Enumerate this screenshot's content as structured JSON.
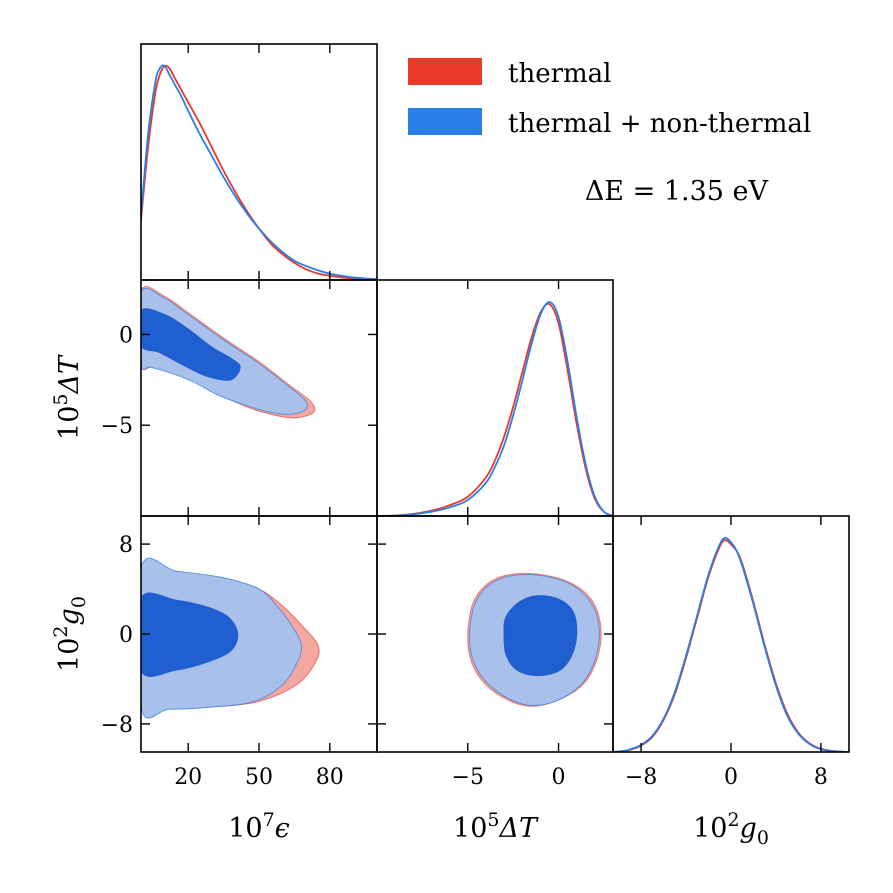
{
  "chart_data": {
    "type": "corner",
    "title": "",
    "annotation": "ΔE = 1.35 eV",
    "colors": {
      "thermal": "#e8392a",
      "nonthermal": "#2a7ee8",
      "inner": "#1f5fd0",
      "outer": "#a9c1ea",
      "outer_red": "#f2a8a0"
    },
    "legend": {
      "position": "top-right",
      "entries": [
        {
          "name": "thermal",
          "label": "thermal",
          "color": "#e8392a"
        },
        {
          "name": "thermal-nonthermal",
          "label": "thermal + non-thermal",
          "color": "#2a7ee8"
        }
      ]
    },
    "parameters": [
      {
        "name": "epsilon",
        "base": "10",
        "exp": "7",
        "symbol": "ϵ",
        "sub": "",
        "range": [
          0,
          100
        ],
        "ticks": [
          20,
          50,
          80
        ],
        "tick_labels": [
          "20",
          "50",
          "80"
        ]
      },
      {
        "name": "deltaT",
        "base": "10",
        "exp": "5",
        "symbol": "ΔT",
        "sub": "",
        "range": [
          -10,
          3
        ],
        "ticks": [
          -5,
          0
        ],
        "tick_labels": [
          "−5",
          "0"
        ]
      },
      {
        "name": "g0",
        "base": "10",
        "exp": "2",
        "symbol": "g",
        "sub": "0",
        "range": [
          -10.5,
          10.5
        ],
        "ticks": [
          -8,
          0,
          8
        ],
        "tick_labels": [
          "−8",
          "0",
          "8"
        ]
      }
    ],
    "marginals": {
      "epsilon": {
        "x": [
          0,
          3,
          6,
          8,
          10,
          12,
          14,
          17,
          20,
          25,
          30,
          35,
          40,
          45,
          50,
          55,
          60,
          65,
          70,
          75,
          80,
          85,
          90,
          95,
          100
        ],
        "thermal": [
          0.28,
          0.62,
          0.87,
          0.96,
          1.0,
          0.99,
          0.95,
          0.89,
          0.83,
          0.73,
          0.62,
          0.51,
          0.41,
          0.32,
          0.24,
          0.17,
          0.12,
          0.08,
          0.05,
          0.03,
          0.02,
          0.012,
          0.007,
          0.004,
          0.002
        ],
        "nonthermal": [
          0.3,
          0.68,
          0.92,
          0.99,
          1.0,
          0.96,
          0.92,
          0.86,
          0.79,
          0.68,
          0.58,
          0.48,
          0.39,
          0.31,
          0.24,
          0.18,
          0.13,
          0.09,
          0.065,
          0.045,
          0.03,
          0.02,
          0.012,
          0.007,
          0.004
        ]
      },
      "deltaT": {
        "x": [
          -10,
          -9,
          -8,
          -7,
          -6,
          -5,
          -4,
          -3.5,
          -3,
          -2.5,
          -2,
          -1.5,
          -1,
          -0.5,
          0,
          0.5,
          1,
          1.5,
          2,
          2.5,
          3
        ],
        "thermal": [
          0.0,
          0.002,
          0.01,
          0.025,
          0.05,
          0.09,
          0.18,
          0.26,
          0.37,
          0.51,
          0.67,
          0.83,
          0.95,
          0.99,
          0.9,
          0.68,
          0.43,
          0.22,
          0.08,
          0.02,
          0.0
        ],
        "nonthermal": [
          0.0,
          0.001,
          0.008,
          0.02,
          0.04,
          0.075,
          0.155,
          0.23,
          0.33,
          0.47,
          0.63,
          0.8,
          0.94,
          1.0,
          0.93,
          0.72,
          0.46,
          0.24,
          0.09,
          0.02,
          0.0
        ]
      },
      "g0": {
        "x": [
          -10.5,
          -10,
          -9,
          -8,
          -7,
          -6,
          -5,
          -4,
          -3,
          -2,
          -1,
          -0.5,
          0,
          0.5,
          1,
          2,
          3,
          4,
          5,
          6,
          7,
          8,
          9,
          10,
          10.5
        ],
        "thermal": [
          0.0,
          0.002,
          0.01,
          0.03,
          0.07,
          0.15,
          0.27,
          0.44,
          0.63,
          0.82,
          0.96,
          0.99,
          0.97,
          0.94,
          0.88,
          0.7,
          0.5,
          0.32,
          0.18,
          0.09,
          0.04,
          0.015,
          0.005,
          0.001,
          0.0
        ],
        "nonthermal": [
          0.0,
          0.002,
          0.012,
          0.034,
          0.075,
          0.155,
          0.28,
          0.45,
          0.64,
          0.83,
          0.97,
          1.0,
          0.98,
          0.94,
          0.87,
          0.69,
          0.49,
          0.31,
          0.17,
          0.085,
          0.037,
          0.013,
          0.004,
          0.001,
          0.0
        ]
      }
    },
    "contours": {
      "deltaT_vs_epsilon": {
        "inner": [
          [
            0,
            1.3
          ],
          [
            10,
            1.1
          ],
          [
            20,
            0.3
          ],
          [
            30,
            -0.7
          ],
          [
            38,
            -1.3
          ],
          [
            42,
            -1.8
          ],
          [
            38,
            -2.5
          ],
          [
            28,
            -2.3
          ],
          [
            18,
            -1.7
          ],
          [
            8,
            -1.0
          ],
          [
            0,
            -0.6
          ]
        ],
        "outer_thermal": [
          [
            0,
            2.4
          ],
          [
            10,
            2.1
          ],
          [
            20,
            1.2
          ],
          [
            35,
            -0.2
          ],
          [
            50,
            -1.5
          ],
          [
            62,
            -2.7
          ],
          [
            72,
            -3.7
          ],
          [
            73,
            -4.3
          ],
          [
            65,
            -4.6
          ],
          [
            55,
            -4.4
          ],
          [
            45,
            -4.0
          ],
          [
            35,
            -3.4
          ],
          [
            25,
            -2.7
          ],
          [
            15,
            -2.2
          ],
          [
            5,
            -1.8
          ],
          [
            0,
            -1.6
          ]
        ],
        "outer_nonthermal": [
          [
            0,
            2.3
          ],
          [
            10,
            2.0
          ],
          [
            20,
            1.1
          ],
          [
            35,
            -0.3
          ],
          [
            50,
            -1.6
          ],
          [
            62,
            -2.8
          ],
          [
            70,
            -3.7
          ],
          [
            69,
            -4.2
          ],
          [
            62,
            -4.4
          ],
          [
            52,
            -4.2
          ],
          [
            42,
            -3.8
          ],
          [
            32,
            -3.3
          ],
          [
            22,
            -2.6
          ],
          [
            12,
            -2.1
          ],
          [
            4,
            -1.8
          ],
          [
            0,
            -1.6
          ]
        ]
      },
      "g0_vs_epsilon": {
        "inner": [
          [
            0,
            3.2
          ],
          [
            15,
            3.0
          ],
          [
            28,
            2.4
          ],
          [
            37,
            1.5
          ],
          [
            41,
            0
          ],
          [
            38,
            -1.5
          ],
          [
            28,
            -2.5
          ],
          [
            15,
            -3.2
          ],
          [
            0,
            -3.3
          ]
        ],
        "outer_thermal": [
          [
            0,
            5.8
          ],
          [
            15,
            5.5
          ],
          [
            35,
            5.0
          ],
          [
            50,
            4.0
          ],
          [
            60,
            2.5
          ],
          [
            68,
            0.8
          ],
          [
            75,
            -1.0
          ],
          [
            74,
            -2.5
          ],
          [
            66,
            -4.5
          ],
          [
            50,
            -6.0
          ],
          [
            30,
            -6.5
          ],
          [
            12,
            -6.6
          ],
          [
            0,
            -6.3
          ]
        ],
        "outer_nonthermal": [
          [
            0,
            5.9
          ],
          [
            15,
            5.6
          ],
          [
            35,
            5.0
          ],
          [
            50,
            4.0
          ],
          [
            58,
            2.4
          ],
          [
            64,
            0.7
          ],
          [
            68,
            -1.0
          ],
          [
            66,
            -2.6
          ],
          [
            60,
            -4.5
          ],
          [
            48,
            -6.0
          ],
          [
            30,
            -6.5
          ],
          [
            12,
            -6.7
          ],
          [
            0,
            -6.5
          ]
        ]
      },
      "g0_vs_deltaT": {
        "inner": [
          [
            -2.9,
            1.5
          ],
          [
            -2.2,
            2.8
          ],
          [
            -1.2,
            3.4
          ],
          [
            0,
            3.1
          ],
          [
            0.8,
            2.0
          ],
          [
            1.0,
            0
          ],
          [
            0.7,
            -2.0
          ],
          [
            0,
            -3.3
          ],
          [
            -1.2,
            -3.7
          ],
          [
            -2.3,
            -3.2
          ],
          [
            -2.9,
            -1.8
          ],
          [
            -3.0,
            0
          ]
        ],
        "outer_thermal": [
          [
            -4.7,
            2.8
          ],
          [
            -3.6,
            4.8
          ],
          [
            -1.8,
            5.4
          ],
          [
            0.3,
            4.8
          ],
          [
            1.7,
            3.3
          ],
          [
            2.3,
            1.0
          ],
          [
            2.2,
            -1.8
          ],
          [
            1.4,
            -4.4
          ],
          [
            -0.2,
            -6.0
          ],
          [
            -1.8,
            -6.4
          ],
          [
            -3.5,
            -5.2
          ],
          [
            -4.6,
            -3.2
          ],
          [
            -5.0,
            -0.6
          ]
        ],
        "outer_nonthermal": [
          [
            -4.6,
            2.7
          ],
          [
            -3.5,
            4.7
          ],
          [
            -1.7,
            5.3
          ],
          [
            0.3,
            4.7
          ],
          [
            1.6,
            3.2
          ],
          [
            2.2,
            1.0
          ],
          [
            2.1,
            -1.8
          ],
          [
            1.3,
            -4.4
          ],
          [
            -0.2,
            -6.0
          ],
          [
            -1.8,
            -6.3
          ],
          [
            -3.4,
            -5.1
          ],
          [
            -4.5,
            -3.1
          ],
          [
            -4.9,
            -0.6
          ]
        ]
      }
    }
  }
}
